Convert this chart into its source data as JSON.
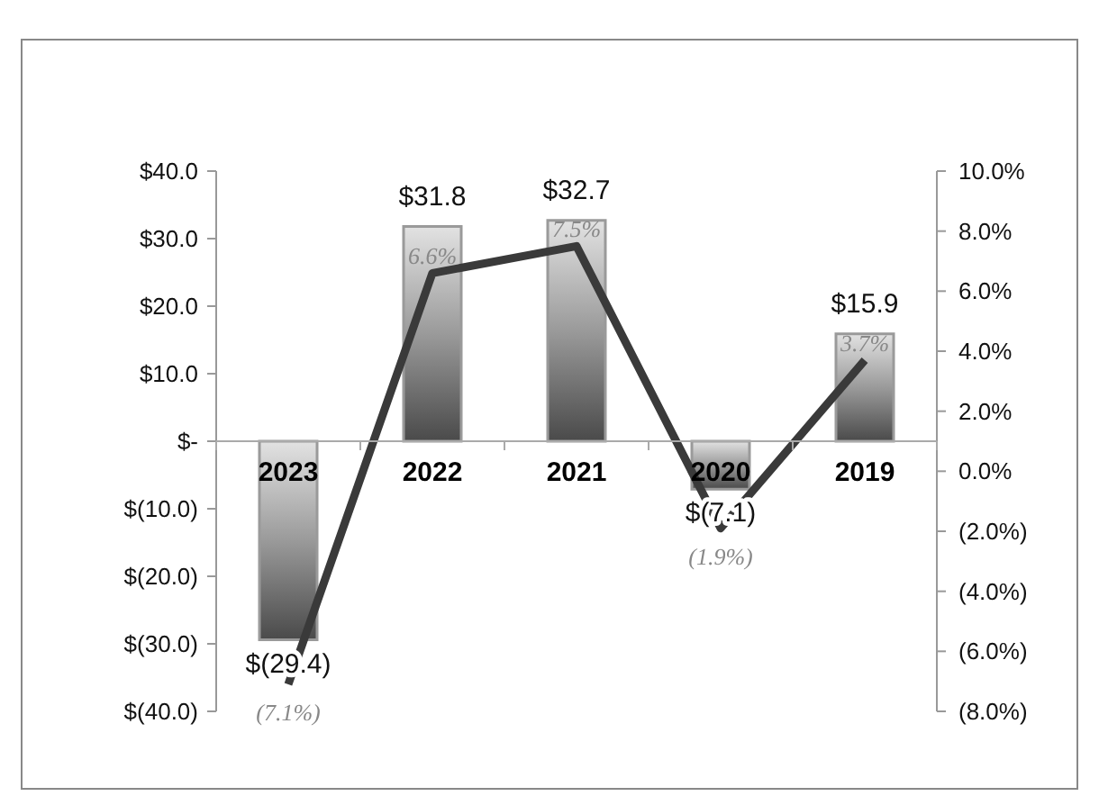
{
  "chart_data": {
    "type": "bar",
    "categories": [
      "2023",
      "2022",
      "2021",
      "2020",
      "2019"
    ],
    "series": [
      {
        "color": "#9a9a9a",
        "values": [
          -29.4,
          31.8,
          32.7,
          -7.1,
          15.9
        ],
        "value_labels": [
          "$(29.4)",
          "$31.8",
          "$32.7",
          "$(7.1)",
          "$15.9"
        ]
      },
      {
        "type": "line",
        "axis": "y2",
        "color": "#3a3a3a",
        "values": [
          -7.1,
          6.6,
          7.5,
          -1.9,
          3.7
        ],
        "value_labels": [
          "(7.1%)",
          "6.6%",
          "7.5%",
          "(1.9%)",
          "3.7%"
        ]
      }
    ],
    "ylim": [
      -40,
      40
    ],
    "yticks": [
      {
        "value": -40,
        "label": "$(40.0)"
      },
      {
        "value": -30,
        "label": "$(30.0)"
      },
      {
        "value": -20,
        "label": "$(20.0)"
      },
      {
        "value": -10,
        "label": "$(10.0)"
      },
      {
        "value": 0,
        "label": "$-"
      },
      {
        "value": 10,
        "label": "$10.0"
      },
      {
        "value": 20,
        "label": "$20.0"
      },
      {
        "value": 30,
        "label": "$30.0"
      },
      {
        "value": 40,
        "label": "$40.0"
      }
    ],
    "y2lim": [
      -8,
      10
    ],
    "y2ticks": [
      {
        "value": -8,
        "label": "(8.0%)"
      },
      {
        "value": -6,
        "label": "(6.0%)"
      },
      {
        "value": -4,
        "label": "(4.0%)"
      },
      {
        "value": -2,
        "label": "(2.0%)"
      },
      {
        "value": 0,
        "label": "0.0%"
      },
      {
        "value": 2,
        "label": "2.0%"
      },
      {
        "value": 4,
        "label": "4.0%"
      },
      {
        "value": 6,
        "label": "6.0%"
      },
      {
        "value": 8,
        "label": "8.0%"
      },
      {
        "value": 10,
        "label": "10.0%"
      }
    ],
    "grid": false
  }
}
